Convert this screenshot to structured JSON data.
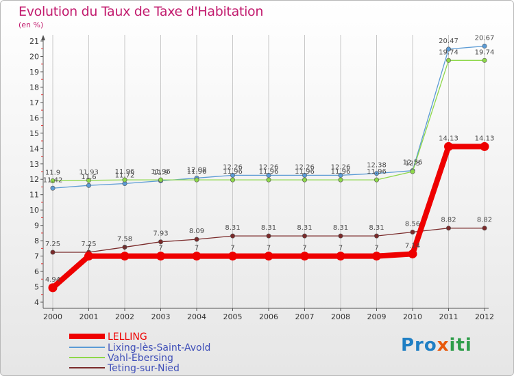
{
  "title": "Evolution du Taux de Taxe d'Habitation",
  "subtitle": "(en %)",
  "brand": {
    "part1": "Pro",
    "part2": "x",
    "part3": "iti"
  },
  "chart_data": {
    "type": "line",
    "title": "Evolution du Taux de Taxe d'Habitation",
    "ylabel": "(en %)",
    "xlabel": "",
    "x": [
      "2000",
      "2001",
      "2002",
      "2003",
      "2004",
      "2005",
      "2006",
      "2007",
      "2008",
      "2009",
      "2010",
      "2011",
      "2012"
    ],
    "ylim": [
      4,
      21
    ],
    "yticks": [
      4,
      5,
      6,
      7,
      8,
      9,
      10,
      11,
      12,
      13,
      14,
      15,
      16,
      17,
      18,
      19,
      20,
      21
    ],
    "grid": "vertical",
    "legend_position": "bottom-left",
    "series": [
      {
        "name": "LELLING",
        "color": "#ee0000",
        "values": [
          4.94,
          7,
          7,
          7,
          7,
          7,
          7,
          7,
          7,
          7,
          7.14,
          14.13,
          14.13
        ],
        "labels": [
          "4.94",
          "7",
          "7",
          "7",
          "7",
          "7",
          "7",
          "7",
          "7",
          "7",
          "7.14",
          "14.13",
          "14.13"
        ]
      },
      {
        "name": "Lixing-lès-Saint-Avold",
        "color": "#5b9bd5",
        "values": [
          11.42,
          11.6,
          11.72,
          11.9,
          12.08,
          12.26,
          12.26,
          12.26,
          12.26,
          12.38,
          12.56,
          20.47,
          20.67
        ],
        "labels": [
          "11.42",
          "11.6",
          "11.72",
          "11.9",
          "12.08",
          "12.26",
          "12.26",
          "12.26",
          "12.26",
          "12.38",
          "12.56",
          "20.47",
          "20.67"
        ]
      },
      {
        "name": "Vahl-Ebersing",
        "color": "#8ed84a",
        "values": [
          11.9,
          11.93,
          11.96,
          11.96,
          11.96,
          11.96,
          11.96,
          11.96,
          11.96,
          11.96,
          12.5,
          19.74,
          19.74
        ],
        "labels": [
          "11.9",
          "11.93",
          "11.96",
          "11.96",
          "11.96",
          "11.96",
          "11.96",
          "11.96",
          "11.96",
          "11.96",
          "12.5",
          "19.74",
          "19.74"
        ]
      },
      {
        "name": "Teting-sur-Nied",
        "color": "#7a2a2a",
        "values": [
          7.25,
          7.25,
          7.58,
          7.93,
          8.09,
          8.31,
          8.31,
          8.31,
          8.31,
          8.31,
          8.56,
          8.82,
          8.82
        ],
        "labels": [
          "7.25",
          "7.25",
          "7.58",
          "7.93",
          "8.09",
          "8.31",
          "8.31",
          "8.31",
          "8.31",
          "8.31",
          "8.56",
          "8.82",
          "8.82"
        ]
      }
    ]
  }
}
